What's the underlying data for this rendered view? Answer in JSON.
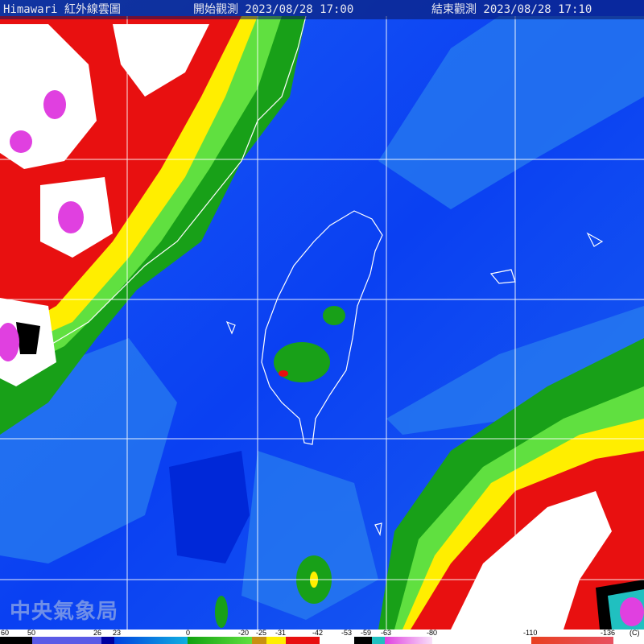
{
  "header": {
    "title": "Himawari 紅外線雲圖",
    "start_label": "開始觀測 2023/08/28 17:00",
    "end_label": "結束觀測 2023/08/28 17:10"
  },
  "logo_text": "中央氣象局",
  "colorbar": {
    "unit": "(C)",
    "labels": [
      "60",
      "50",
      "26",
      "23",
      "0",
      "-20",
      "-25",
      "-31",
      "-42",
      "-53",
      "-59",
      "-63",
      "-80",
      "-110",
      "-136"
    ],
    "colors": {
      "black": "#000000",
      "slate": "#5a5ae6",
      "navy": "#0000a0",
      "blue": "#0050f0",
      "cyan": "#10b0e0",
      "green": "#10a010",
      "lime": "#60e040",
      "gold": "#c89010",
      "yellow": "#ffee00",
      "red": "#e81010",
      "white": "#ffffff",
      "teal": "#20c0c0",
      "magenta": "#e040e0",
      "orange": "#e84020"
    }
  }
}
